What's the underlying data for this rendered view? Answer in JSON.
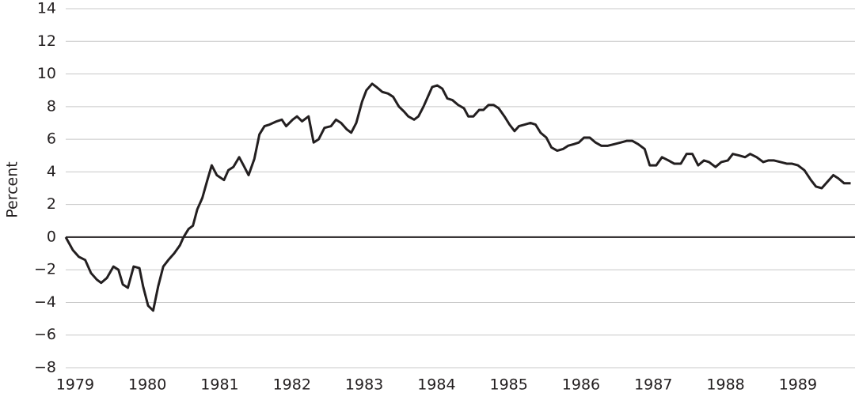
{
  "chart_data": {
    "type": "line",
    "y_label": "Percent",
    "x": [
      1978.87,
      1978.97,
      1979.05,
      1979.14,
      1979.22,
      1979.3,
      1979.36,
      1979.44,
      1979.53,
      1979.6,
      1979.66,
      1979.73,
      1979.81,
      1979.89,
      1979.94,
      1980.01,
      1980.08,
      1980.15,
      1980.22,
      1980.29,
      1980.37,
      1980.45,
      1980.5,
      1980.57,
      1980.63,
      1980.69,
      1980.76,
      1980.83,
      1980.89,
      1980.96,
      1981.06,
      1981.12,
      1981.19,
      1981.27,
      1981.33,
      1981.4,
      1981.48,
      1981.55,
      1981.62,
      1981.69,
      1981.79,
      1981.86,
      1981.92,
      1982.01,
      1982.07,
      1982.14,
      1982.23,
      1982.3,
      1982.37,
      1982.45,
      1982.54,
      1982.61,
      1982.68,
      1982.76,
      1982.82,
      1982.89,
      1982.97,
      1983.03,
      1983.11,
      1983.17,
      1983.25,
      1983.33,
      1983.4,
      1983.48,
      1983.55,
      1983.61,
      1983.69,
      1983.75,
      1983.82,
      1983.89,
      1983.94,
      1984.01,
      1984.08,
      1984.15,
      1984.22,
      1984.3,
      1984.38,
      1984.44,
      1984.51,
      1984.59,
      1984.65,
      1984.72,
      1984.79,
      1984.86,
      1984.94,
      1985.01,
      1985.08,
      1985.14,
      1985.22,
      1985.3,
      1985.37,
      1985.44,
      1985.52,
      1985.59,
      1985.67,
      1985.75,
      1985.82,
      1985.9,
      1985.97,
      1986.04,
      1986.12,
      1986.2,
      1986.28,
      1986.37,
      1986.46,
      1986.55,
      1986.63,
      1986.71,
      1986.79,
      1986.88,
      1986.95,
      1987.04,
      1987.12,
      1987.21,
      1987.29,
      1987.38,
      1987.46,
      1987.54,
      1987.62,
      1987.7,
      1987.77,
      1987.86,
      1987.94,
      1988.03,
      1988.1,
      1988.19,
      1988.27,
      1988.34,
      1988.43,
      1988.52,
      1988.59,
      1988.67,
      1988.76,
      1988.85,
      1988.92,
      1989.0,
      1989.09,
      1989.18,
      1989.25,
      1989.33,
      1989.41,
      1989.49,
      1989.56,
      1989.64,
      1989.73
    ],
    "series": [
      {
        "color": "#231f20",
        "values": [
          0,
          -0.8,
          -1.2,
          -1.4,
          -2.2,
          -2.6,
          -2.8,
          -2.5,
          -1.8,
          -2.0,
          -2.9,
          -3.1,
          -1.8,
          -1.9,
          -3.0,
          -4.2,
          -4.5,
          -3.0,
          -1.8,
          -1.4,
          -1.0,
          -0.5,
          0.0,
          0.5,
          0.7,
          1.7,
          2.4,
          3.5,
          4.4,
          3.8,
          3.5,
          4.1,
          4.3,
          4.9,
          4.4,
          3.8,
          4.8,
          6.3,
          6.8,
          6.9,
          7.1,
          7.2,
          6.8,
          7.2,
          7.4,
          7.1,
          7.4,
          5.8,
          6.0,
          6.7,
          6.8,
          7.2,
          7.0,
          6.6,
          6.4,
          7.0,
          8.3,
          9.0,
          9.4,
          9.2,
          8.9,
          8.8,
          8.6,
          8.0,
          7.7,
          7.4,
          7.2,
          7.4,
          8.0,
          8.7,
          9.2,
          9.3,
          9.1,
          8.5,
          8.4,
          8.1,
          7.9,
          7.4,
          7.4,
          7.8,
          7.8,
          8.1,
          8.1,
          7.9,
          7.4,
          6.9,
          6.5,
          6.8,
          6.9,
          7.0,
          6.9,
          6.4,
          6.1,
          5.5,
          5.3,
          5.4,
          5.6,
          5.7,
          5.8,
          6.1,
          6.1,
          5.8,
          5.6,
          5.6,
          5.7,
          5.8,
          5.9,
          5.9,
          5.7,
          5.4,
          4.4,
          4.4,
          4.9,
          4.7,
          4.5,
          4.5,
          5.1,
          5.1,
          4.4,
          4.7,
          4.6,
          4.3,
          4.6,
          4.7,
          5.1,
          5.0,
          4.9,
          5.1,
          4.9,
          4.6,
          4.7,
          4.7,
          4.6,
          4.5,
          4.5,
          4.4,
          4.1,
          3.5,
          3.1,
          3.0,
          3.4,
          3.8,
          3.6,
          3.3,
          3.3
        ]
      }
    ],
    "xlim": [
      1978.87,
      1989.79
    ],
    "xticks": [
      1979,
      1980,
      1981,
      1982,
      1983,
      1984,
      1985,
      1986,
      1987,
      1988,
      1989
    ],
    "ylim": [
      -8,
      14
    ],
    "yticks": [
      {
        "value": -8,
        "label": "−8"
      },
      {
        "value": -6,
        "label": "−6"
      },
      {
        "value": -4,
        "label": "−4"
      },
      {
        "value": -2,
        "label": "−2"
      },
      0,
      2,
      4,
      6,
      8,
      10,
      12,
      14
    ],
    "grid": true
  }
}
